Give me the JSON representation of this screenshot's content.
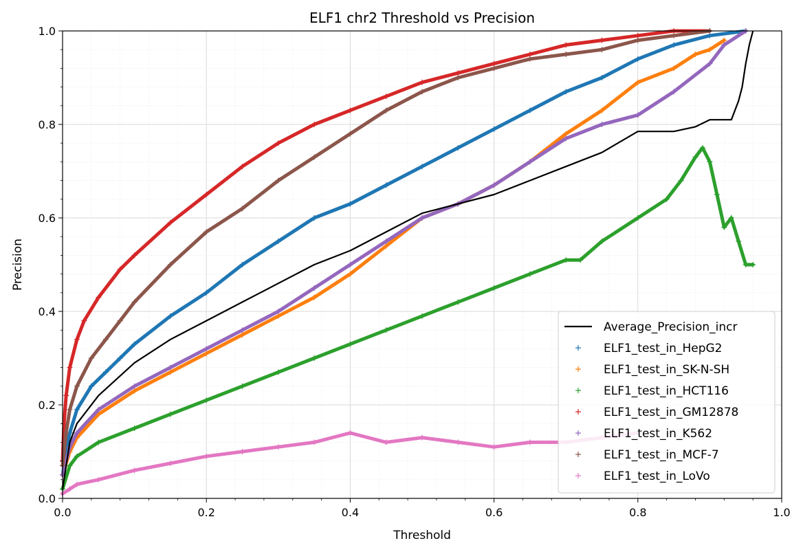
{
  "chart_data": {
    "type": "scatter",
    "title": "ELF1 chr2 Threshold vs Precision",
    "xlabel": "Threshold",
    "ylabel": "Precision",
    "xlim": [
      0,
      1
    ],
    "ylim": [
      0,
      1
    ],
    "grid": true,
    "legend_position": "lower-right",
    "x_ticks": [
      "0.0",
      "0.2",
      "0.4",
      "0.6",
      "0.8",
      "1.0"
    ],
    "y_ticks": [
      "0.0",
      "0.2",
      "0.4",
      "0.6",
      "0.8",
      "1.0"
    ],
    "series": [
      {
        "name": "Average_Precision_incr",
        "kind": "line",
        "color": "#000000",
        "x": [
          0,
          0.01,
          0.02,
          0.05,
          0.1,
          0.15,
          0.2,
          0.25,
          0.3,
          0.35,
          0.4,
          0.45,
          0.5,
          0.55,
          0.6,
          0.65,
          0.7,
          0.75,
          0.8,
          0.85,
          0.88,
          0.9,
          0.93,
          0.94,
          0.945,
          0.95,
          0.955,
          0.96
        ],
        "y": [
          0.02,
          0.12,
          0.16,
          0.22,
          0.29,
          0.34,
          0.38,
          0.42,
          0.46,
          0.5,
          0.53,
          0.57,
          0.61,
          0.63,
          0.65,
          0.68,
          0.71,
          0.74,
          0.785,
          0.785,
          0.795,
          0.81,
          0.81,
          0.85,
          0.88,
          0.93,
          0.97,
          1.0
        ]
      },
      {
        "name": "ELF1_test_in_HepG2",
        "kind": "points",
        "color": "#1f77b4",
        "x": [
          0,
          0.005,
          0.01,
          0.02,
          0.04,
          0.06,
          0.08,
          0.1,
          0.15,
          0.2,
          0.25,
          0.3,
          0.35,
          0.4,
          0.45,
          0.5,
          0.55,
          0.6,
          0.65,
          0.7,
          0.75,
          0.8,
          0.85,
          0.9,
          0.95
        ],
        "y": [
          0.05,
          0.1,
          0.14,
          0.19,
          0.24,
          0.27,
          0.3,
          0.33,
          0.39,
          0.44,
          0.5,
          0.55,
          0.6,
          0.63,
          0.67,
          0.71,
          0.75,
          0.79,
          0.83,
          0.87,
          0.9,
          0.94,
          0.97,
          0.99,
          1.0
        ]
      },
      {
        "name": "ELF1_test_in_SK-N-SH",
        "kind": "points",
        "color": "#ff7f0e",
        "x": [
          0,
          0.01,
          0.02,
          0.05,
          0.1,
          0.15,
          0.2,
          0.25,
          0.3,
          0.35,
          0.4,
          0.45,
          0.5,
          0.55,
          0.6,
          0.65,
          0.7,
          0.75,
          0.8,
          0.85,
          0.88,
          0.9,
          0.92
        ],
        "y": [
          0.05,
          0.1,
          0.13,
          0.18,
          0.23,
          0.27,
          0.31,
          0.35,
          0.39,
          0.43,
          0.48,
          0.54,
          0.6,
          0.63,
          0.67,
          0.72,
          0.78,
          0.83,
          0.89,
          0.92,
          0.95,
          0.96,
          0.98
        ]
      },
      {
        "name": "ELF1_test_in_HCT116",
        "kind": "points",
        "color": "#2ca02c",
        "x": [
          0,
          0.01,
          0.02,
          0.05,
          0.1,
          0.15,
          0.2,
          0.25,
          0.3,
          0.35,
          0.4,
          0.45,
          0.5,
          0.55,
          0.6,
          0.65,
          0.7,
          0.72,
          0.75,
          0.8,
          0.84,
          0.86,
          0.88,
          0.89,
          0.9,
          0.91,
          0.92,
          0.93,
          0.94,
          0.95,
          0.96
        ],
        "y": [
          0.02,
          0.07,
          0.09,
          0.12,
          0.15,
          0.18,
          0.21,
          0.24,
          0.27,
          0.3,
          0.33,
          0.36,
          0.39,
          0.42,
          0.45,
          0.48,
          0.51,
          0.51,
          0.55,
          0.6,
          0.64,
          0.68,
          0.73,
          0.75,
          0.72,
          0.65,
          0.58,
          0.6,
          0.55,
          0.5,
          0.5
        ]
      },
      {
        "name": "ELF1_test_in_GM12878",
        "kind": "points",
        "color": "#d62728",
        "x": [
          0,
          0.002,
          0.005,
          0.01,
          0.02,
          0.03,
          0.05,
          0.08,
          0.1,
          0.15,
          0.2,
          0.25,
          0.3,
          0.35,
          0.4,
          0.45,
          0.5,
          0.55,
          0.6,
          0.65,
          0.7,
          0.75,
          0.8,
          0.85,
          0.9
        ],
        "y": [
          0.08,
          0.16,
          0.22,
          0.28,
          0.34,
          0.38,
          0.43,
          0.49,
          0.52,
          0.59,
          0.65,
          0.71,
          0.76,
          0.8,
          0.83,
          0.86,
          0.89,
          0.91,
          0.93,
          0.95,
          0.97,
          0.98,
          0.99,
          1.0,
          1.0
        ]
      },
      {
        "name": "ELF1_test_in_K562",
        "kind": "points",
        "color": "#9467bd",
        "x": [
          0,
          0.01,
          0.02,
          0.05,
          0.1,
          0.15,
          0.2,
          0.25,
          0.3,
          0.35,
          0.4,
          0.45,
          0.5,
          0.55,
          0.6,
          0.65,
          0.7,
          0.75,
          0.8,
          0.85,
          0.9,
          0.92,
          0.95
        ],
        "y": [
          0.05,
          0.11,
          0.14,
          0.19,
          0.24,
          0.28,
          0.32,
          0.36,
          0.4,
          0.45,
          0.5,
          0.55,
          0.6,
          0.63,
          0.67,
          0.72,
          0.77,
          0.8,
          0.82,
          0.87,
          0.93,
          0.97,
          1.0
        ]
      },
      {
        "name": "ELF1_test_in_MCF-7",
        "kind": "points",
        "color": "#8c564b",
        "x": [
          0,
          0.005,
          0.01,
          0.02,
          0.04,
          0.06,
          0.08,
          0.1,
          0.15,
          0.2,
          0.25,
          0.3,
          0.35,
          0.4,
          0.45,
          0.5,
          0.55,
          0.6,
          0.65,
          0.7,
          0.75,
          0.8,
          0.85,
          0.9
        ],
        "y": [
          0.07,
          0.14,
          0.19,
          0.24,
          0.3,
          0.34,
          0.38,
          0.42,
          0.5,
          0.57,
          0.62,
          0.68,
          0.73,
          0.78,
          0.83,
          0.87,
          0.9,
          0.92,
          0.94,
          0.95,
          0.96,
          0.98,
          0.99,
          1.0
        ]
      },
      {
        "name": "ELF1_test_in_LoVo",
        "kind": "points",
        "color": "#e377c2",
        "x": [
          0,
          0.01,
          0.02,
          0.05,
          0.1,
          0.15,
          0.2,
          0.25,
          0.3,
          0.35,
          0.4,
          0.45,
          0.5,
          0.55,
          0.6,
          0.65,
          0.7,
          0.75,
          0.8
        ],
        "y": [
          0.01,
          0.02,
          0.03,
          0.04,
          0.06,
          0.075,
          0.09,
          0.1,
          0.11,
          0.12,
          0.14,
          0.12,
          0.13,
          0.12,
          0.11,
          0.12,
          0.12,
          0.13,
          0.14
        ]
      }
    ]
  }
}
